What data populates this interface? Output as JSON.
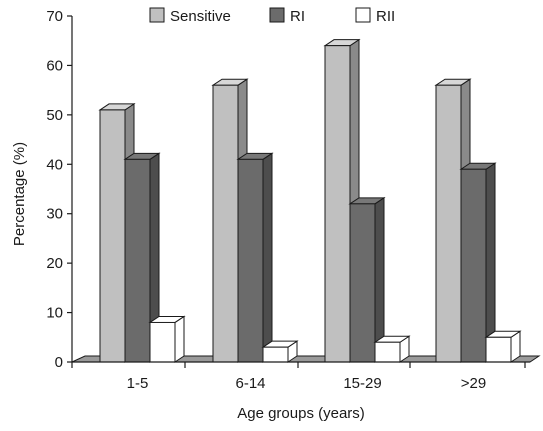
{
  "chart_data": {
    "type": "bar",
    "title": "",
    "xlabel": "Age groups (years)",
    "ylabel": "Percentage (%)",
    "ylim": [
      0,
      70
    ],
    "yticks": [
      0,
      10,
      20,
      30,
      40,
      50,
      60,
      70
    ],
    "categories": [
      "1-5",
      "6-14",
      "15-29",
      ">29"
    ],
    "series": [
      {
        "name": "Sensitive",
        "values": [
          51,
          56,
          64,
          56
        ],
        "color": "#c0c0c0"
      },
      {
        "name": "RI",
        "values": [
          41,
          41,
          32,
          39
        ],
        "color": "#6b6b6b"
      },
      {
        "name": "RII",
        "values": [
          8,
          3,
          4,
          5
        ],
        "color": "#ffffff"
      }
    ],
    "legend_position": "top",
    "grid": false,
    "style": "3d-bar"
  }
}
